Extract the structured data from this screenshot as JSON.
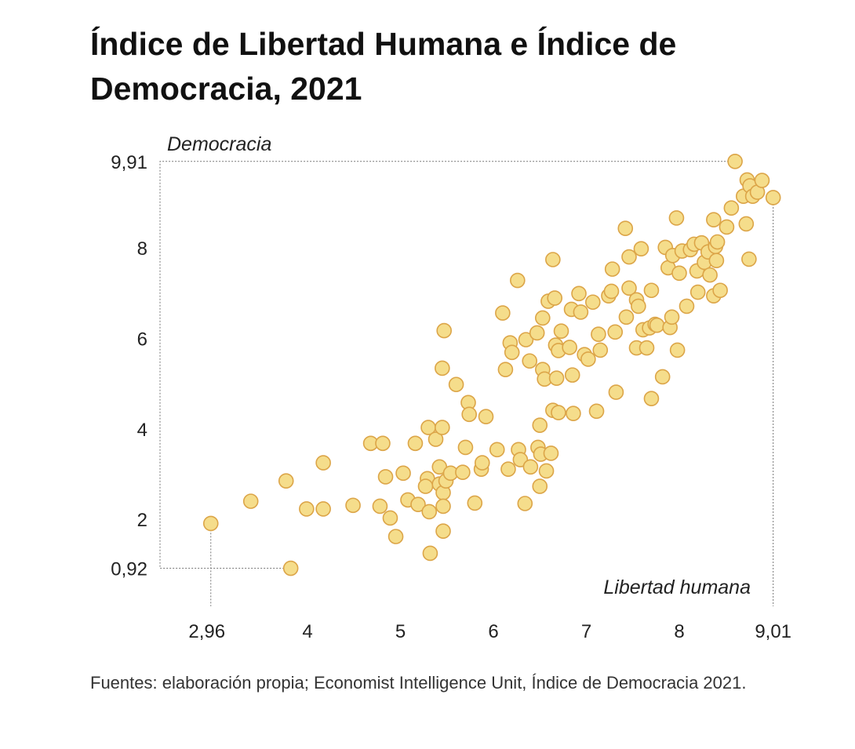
{
  "title": "Índice de Libertad Humana e Índice de Democracia, 2021",
  "source": "Fuentes: elaboración propia; Economist Intelligence Unit, Índice de Democracia 2021.",
  "colors": {
    "point_fill": "#f5dd8b",
    "point_stroke": "#dca548"
  },
  "chart_data": {
    "type": "scatter",
    "title": "Índice de Libertad Humana e Índice de Democracia, 2021",
    "xlabel": "Libertad humana",
    "ylabel": "Democracia",
    "xlim": [
      2.96,
      9.01
    ],
    "ylim": [
      0.92,
      9.91
    ],
    "xticks": [
      "2,96",
      "4",
      "5",
      "6",
      "7",
      "8",
      "9,01"
    ],
    "xtick_values": [
      2.96,
      4,
      5,
      6,
      7,
      8,
      9.01
    ],
    "yticks": [
      "0,92",
      "2",
      "4",
      "6",
      "8",
      "9,91"
    ],
    "ytick_values": [
      0.92,
      2,
      4,
      6,
      8,
      9.91
    ],
    "grid": false,
    "points": [
      [
        2.96,
        1.91
      ],
      [
        3.39,
        2.4
      ],
      [
        3.77,
        2.85
      ],
      [
        3.82,
        0.92
      ],
      [
        3.99,
        2.23
      ],
      [
        4.17,
        3.25
      ],
      [
        4.17,
        2.23
      ],
      [
        4.49,
        2.31
      ],
      [
        4.68,
        3.68
      ],
      [
        4.81,
        3.68
      ],
      [
        4.78,
        2.29
      ],
      [
        4.84,
        2.94
      ],
      [
        4.89,
        2.03
      ],
      [
        4.95,
        1.62
      ],
      [
        5.03,
        3.02
      ],
      [
        5.08,
        2.43
      ],
      [
        5.16,
        3.68
      ],
      [
        5.19,
        2.33
      ],
      [
        5.32,
        1.25
      ],
      [
        5.3,
        4.03
      ],
      [
        5.31,
        2.17
      ],
      [
        5.29,
        2.9
      ],
      [
        5.27,
        2.73
      ],
      [
        5.38,
        3.77
      ],
      [
        5.42,
        3.16
      ],
      [
        5.42,
        2.78
      ],
      [
        5.45,
        4.03
      ],
      [
        5.45,
        5.34
      ],
      [
        5.46,
        1.74
      ],
      [
        5.46,
        2.59
      ],
      [
        5.46,
        2.29
      ],
      [
        5.47,
        6.17
      ],
      [
        5.49,
        2.85
      ],
      [
        5.54,
        3.02
      ],
      [
        5.6,
        4.98
      ],
      [
        5.67,
        3.04
      ],
      [
        5.7,
        3.59
      ],
      [
        5.73,
        4.58
      ],
      [
        5.74,
        4.32
      ],
      [
        5.8,
        2.36
      ],
      [
        5.87,
        3.11
      ],
      [
        5.88,
        3.25
      ],
      [
        5.92,
        4.27
      ],
      [
        6.04,
        3.54
      ],
      [
        6.1,
        6.56
      ],
      [
        6.13,
        5.31
      ],
      [
        6.16,
        3.11
      ],
      [
        6.18,
        5.9
      ],
      [
        6.2,
        5.69
      ],
      [
        6.26,
        7.28
      ],
      [
        6.27,
        3.54
      ],
      [
        6.29,
        3.32
      ],
      [
        6.34,
        2.35
      ],
      [
        6.35,
        5.97
      ],
      [
        6.39,
        5.5
      ],
      [
        6.4,
        3.16
      ],
      [
        6.47,
        6.12
      ],
      [
        6.48,
        3.59
      ],
      [
        6.5,
        4.08
      ],
      [
        6.51,
        3.44
      ],
      [
        6.5,
        2.73
      ],
      [
        6.53,
        5.31
      ],
      [
        6.53,
        6.45
      ],
      [
        6.55,
        5.1
      ],
      [
        6.57,
        3.07
      ],
      [
        6.64,
        4.41
      ],
      [
        6.62,
        3.46
      ],
      [
        6.59,
        6.82
      ],
      [
        6.66,
        6.89
      ],
      [
        6.67,
        5.85
      ],
      [
        6.68,
        5.12
      ],
      [
        6.7,
        4.36
      ],
      [
        6.7,
        5.73
      ],
      [
        6.64,
        7.74
      ],
      [
        6.73,
        6.16
      ],
      [
        6.82,
        5.8
      ],
      [
        6.84,
        6.64
      ],
      [
        6.85,
        5.19
      ],
      [
        6.86,
        4.34
      ],
      [
        6.92,
        6.99
      ],
      [
        6.94,
        6.58
      ],
      [
        6.98,
        5.64
      ],
      [
        7.02,
        5.54
      ],
      [
        7.07,
        6.8
      ],
      [
        7.11,
        4.39
      ],
      [
        7.13,
        6.09
      ],
      [
        7.15,
        5.74
      ],
      [
        7.24,
        6.94
      ],
      [
        7.27,
        7.04
      ],
      [
        7.28,
        7.53
      ],
      [
        7.31,
        6.14
      ],
      [
        7.32,
        4.81
      ],
      [
        7.42,
        8.43
      ],
      [
        7.43,
        6.47
      ],
      [
        7.46,
        7.8
      ],
      [
        7.46,
        7.11
      ],
      [
        7.54,
        6.85
      ],
      [
        7.54,
        5.79
      ],
      [
        7.56,
        6.71
      ],
      [
        7.59,
        7.98
      ],
      [
        7.61,
        6.19
      ],
      [
        7.65,
        5.79
      ],
      [
        7.68,
        6.23
      ],
      [
        7.7,
        7.06
      ],
      [
        7.7,
        4.67
      ],
      [
        7.74,
        6.31
      ],
      [
        7.76,
        6.29
      ],
      [
        7.82,
        5.15
      ],
      [
        7.85,
        8.01
      ],
      [
        7.88,
        7.56
      ],
      [
        7.9,
        6.24
      ],
      [
        7.92,
        6.47
      ],
      [
        7.93,
        7.83
      ],
      [
        7.97,
        8.66
      ],
      [
        7.98,
        5.74
      ],
      [
        8.0,
        7.44
      ],
      [
        8.03,
        7.93
      ],
      [
        8.08,
        6.71
      ],
      [
        8.12,
        7.96
      ],
      [
        8.16,
        8.08
      ],
      [
        8.19,
        7.49
      ],
      [
        8.2,
        7.02
      ],
      [
        8.24,
        8.11
      ],
      [
        8.27,
        7.68
      ],
      [
        8.31,
        7.91
      ],
      [
        8.33,
        7.4
      ],
      [
        8.37,
        8.62
      ],
      [
        8.39,
        8.03
      ],
      [
        8.4,
        7.72
      ],
      [
        8.41,
        8.13
      ],
      [
        8.37,
        6.94
      ],
      [
        8.44,
        7.06
      ],
      [
        8.51,
        8.46
      ],
      [
        8.56,
        8.88
      ],
      [
        8.6,
        9.91
      ],
      [
        8.69,
        9.14
      ],
      [
        8.72,
        8.53
      ],
      [
        8.73,
        9.5
      ],
      [
        8.76,
        9.37
      ],
      [
        8.75,
        7.75
      ],
      [
        8.79,
        9.14
      ],
      [
        8.84,
        9.23
      ],
      [
        8.89,
        9.49
      ],
      [
        9.01,
        9.11
      ]
    ]
  }
}
